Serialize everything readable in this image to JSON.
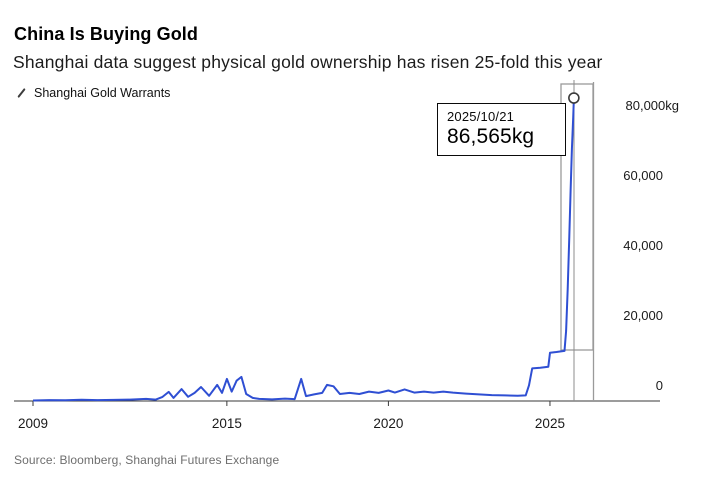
{
  "header": {
    "title": "China Is Buying Gold",
    "subtitle": "Shanghai data suggest physical gold ownership has risen 25-fold this year"
  },
  "legend": {
    "label": "Shanghai Gold Warrants",
    "marker": "slash-icon"
  },
  "annotation": {
    "date": "2025/10/21",
    "value": "86,565kg"
  },
  "source": "Source: Bloomberg, Shanghai Futures Exchange",
  "colors": {
    "line": "#2f4fd3",
    "axis": "#3a3a3a",
    "tick_text": "#1a1a1a",
    "box_border": "#9a9a9a",
    "cursor_line": "#8c8c8c",
    "marker_stroke": "#3a3a3a",
    "marker_fill": "#ffffff"
  },
  "chart_data": {
    "type": "line",
    "title": "China Is Buying Gold",
    "subtitle": "Shanghai data suggest physical gold ownership has risen 25-fold this year",
    "unit": "kg",
    "grid": false,
    "legend_position": "top-left",
    "x_range": [
      2008.5,
      2026.5
    ],
    "y_range": [
      0,
      90000
    ],
    "x_ticks": [
      2009,
      2015,
      2020,
      2025
    ],
    "y_ticks": [
      {
        "value": 0,
        "label": "0"
      },
      {
        "value": 20000,
        "label": "20,000"
      },
      {
        "value": 40000,
        "label": "40,000"
      },
      {
        "value": 60000,
        "label": "60,000"
      },
      {
        "value": 80000,
        "label": "80,000kg"
      }
    ],
    "last_point": {
      "date": "2025/10/21",
      "value": 86565
    },
    "series": [
      {
        "name": "Shanghai Gold Warrants",
        "points": [
          [
            2009.0,
            150
          ],
          [
            2009.5,
            250
          ],
          [
            2010.0,
            200
          ],
          [
            2010.5,
            350
          ],
          [
            2011.0,
            250
          ],
          [
            2011.5,
            300
          ],
          [
            2012.0,
            400
          ],
          [
            2012.5,
            600
          ],
          [
            2012.8,
            400
          ],
          [
            2013.0,
            1100
          ],
          [
            2013.2,
            2600
          ],
          [
            2013.35,
            900
          ],
          [
            2013.6,
            3400
          ],
          [
            2013.8,
            1200
          ],
          [
            2014.0,
            2300
          ],
          [
            2014.2,
            4000
          ],
          [
            2014.45,
            1500
          ],
          [
            2014.7,
            4600
          ],
          [
            2014.85,
            2300
          ],
          [
            2015.0,
            6300
          ],
          [
            2015.15,
            2700
          ],
          [
            2015.3,
            5800
          ],
          [
            2015.45,
            6900
          ],
          [
            2015.6,
            2000
          ],
          [
            2015.8,
            900
          ],
          [
            2016.0,
            600
          ],
          [
            2016.4,
            450
          ],
          [
            2016.8,
            700
          ],
          [
            2017.1,
            550
          ],
          [
            2017.3,
            6300
          ],
          [
            2017.45,
            1400
          ],
          [
            2017.7,
            1900
          ],
          [
            2017.95,
            2300
          ],
          [
            2018.1,
            4600
          ],
          [
            2018.3,
            4200
          ],
          [
            2018.5,
            2000
          ],
          [
            2018.8,
            2300
          ],
          [
            2019.1,
            2000
          ],
          [
            2019.4,
            2700
          ],
          [
            2019.7,
            2300
          ],
          [
            2020.0,
            3000
          ],
          [
            2020.2,
            2400
          ],
          [
            2020.5,
            3300
          ],
          [
            2020.8,
            2400
          ],
          [
            2021.1,
            2700
          ],
          [
            2021.4,
            2400
          ],
          [
            2021.7,
            2700
          ],
          [
            2022.0,
            2400
          ],
          [
            2022.4,
            2100
          ],
          [
            2022.8,
            1900
          ],
          [
            2023.2,
            1700
          ],
          [
            2023.6,
            1600
          ],
          [
            2024.0,
            1500
          ],
          [
            2024.25,
            1600
          ],
          [
            2024.35,
            4500
          ],
          [
            2024.45,
            9300
          ],
          [
            2024.7,
            9500
          ],
          [
            2024.95,
            9800
          ],
          [
            2025.0,
            13800
          ],
          [
            2025.2,
            14000
          ],
          [
            2025.45,
            14300
          ],
          [
            2025.5,
            20000
          ],
          [
            2025.55,
            32000
          ],
          [
            2025.6,
            47000
          ],
          [
            2025.64,
            60000
          ],
          [
            2025.68,
            72000
          ],
          [
            2025.72,
            81000
          ],
          [
            2025.74,
            86565
          ]
        ]
      }
    ]
  }
}
